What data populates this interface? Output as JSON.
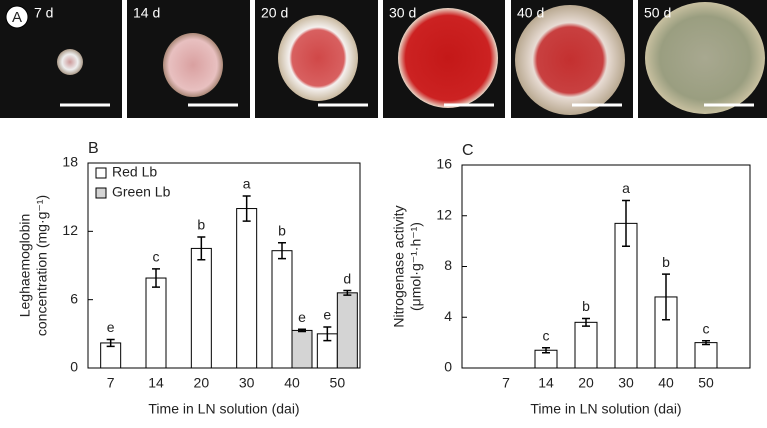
{
  "figure": {
    "panel_label": "A",
    "images": [
      "7 d",
      "14 d",
      "20 d",
      "30 d",
      "40 d",
      "50 d"
    ]
  },
  "chart_data": [
    {
      "type": "bar",
      "panel_label": "B",
      "ylabel": [
        "Leghaemoglobin",
        "concentration (mg·g⁻¹)"
      ],
      "xlabel": "Time in LN solution (dai)",
      "categories": [
        "7",
        "14",
        "20",
        "30",
        "40",
        "50"
      ],
      "series": [
        {
          "name": "Red Lb",
          "color": "#ffffff",
          "values": [
            2.2,
            7.9,
            10.5,
            14.0,
            10.3,
            3.0
          ],
          "errors": [
            0.3,
            0.8,
            1.0,
            1.1,
            0.7,
            0.6
          ],
          "letters": [
            "e",
            "c",
            "b",
            "a",
            "b",
            "e"
          ]
        },
        {
          "name": "Green Lb",
          "color": "#d4d4d4",
          "values": [
            null,
            null,
            null,
            null,
            3.3,
            6.6
          ],
          "errors": [
            null,
            null,
            null,
            null,
            0.1,
            0.2
          ],
          "letters": [
            null,
            null,
            null,
            null,
            "e",
            "d"
          ]
        }
      ],
      "ylim": [
        0,
        18
      ],
      "yticks": [
        0,
        6,
        12,
        18
      ],
      "legend": "upper left"
    },
    {
      "type": "bar",
      "panel_label": "C",
      "ylabel": [
        "Nitrogenase activity",
        "(μmol·g⁻¹·h⁻¹)"
      ],
      "xlabel": "Time in LN solution (dai)",
      "categories": [
        "7",
        "14",
        "20",
        "30",
        "40",
        "50"
      ],
      "series": [
        {
          "color": "#ffffff",
          "values": [
            null,
            1.4,
            3.6,
            11.4,
            5.6,
            2.0
          ],
          "errors": [
            null,
            0.2,
            0.3,
            1.8,
            1.8,
            0.15
          ],
          "letters": [
            null,
            "c",
            "b",
            "a",
            "b",
            "c"
          ]
        }
      ],
      "ylim": [
        0,
        16
      ],
      "yticks": [
        0,
        4,
        8,
        12,
        16
      ]
    }
  ]
}
